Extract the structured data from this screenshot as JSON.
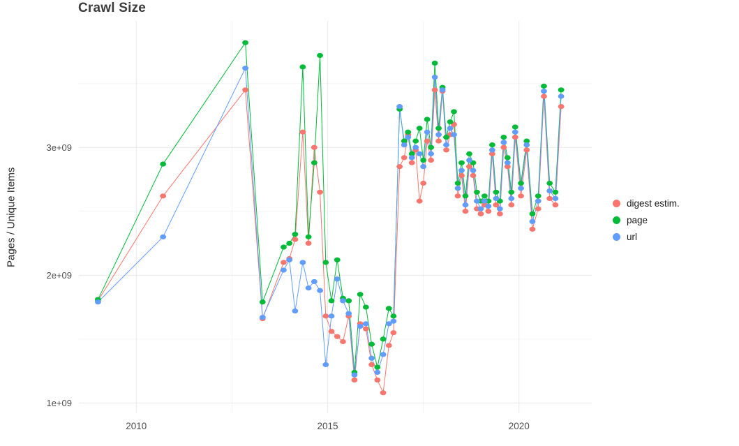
{
  "chart_data": {
    "type": "line",
    "title": "Crawl Size",
    "xlabel": "",
    "ylabel": "Pages / Unique Items",
    "legend_position": "right",
    "grid": true,
    "unit": "items (values in billions, i.e. ×1e+09)",
    "xlim": [
      2008.5,
      2021.9
    ],
    "ylim": [
      0.92,
      3.99
    ],
    "x_ticks": [
      2010,
      2015,
      2020
    ],
    "x_minor_ticks": [
      2012.5,
      2017.5
    ],
    "y_ticks": [
      1,
      2,
      3
    ],
    "y_minor_ticks": [
      1.5,
      2.5,
      3.5
    ],
    "y_tick_labels": [
      "1e+09",
      "2e+09",
      "3e+09"
    ],
    "x": [
      2009.0,
      2010.7,
      2012.85,
      2013.3,
      2013.85,
      2014.0,
      2014.15,
      2014.35,
      2014.5,
      2014.65,
      2014.8,
      2014.95,
      2015.1,
      2015.25,
      2015.4,
      2015.55,
      2015.7,
      2015.85,
      2016.0,
      2016.15,
      2016.3,
      2016.45,
      2016.6,
      2016.72,
      2016.88,
      2017.0,
      2017.1,
      2017.2,
      2017.3,
      2017.4,
      2017.5,
      2017.6,
      2017.7,
      2017.8,
      2017.9,
      2018.0,
      2018.1,
      2018.2,
      2018.3,
      2018.4,
      2018.5,
      2018.6,
      2018.7,
      2018.8,
      2018.9,
      2019.0,
      2019.1,
      2019.2,
      2019.3,
      2019.4,
      2019.5,
      2019.6,
      2019.7,
      2019.8,
      2019.9,
      2020.05,
      2020.2,
      2020.35,
      2020.5,
      2020.65,
      2020.8,
      2020.95,
      2021.1
    ],
    "series": [
      {
        "name": "digest estim.",
        "color": "#F8766D",
        "values": [
          1.8,
          2.62,
          3.45,
          1.66,
          2.1,
          2.13,
          2.28,
          3.12,
          2.25,
          3.0,
          2.65,
          1.68,
          1.56,
          1.52,
          1.48,
          1.68,
          1.18,
          1.62,
          1.58,
          1.3,
          1.18,
          1.08,
          1.45,
          1.55,
          2.85,
          2.92,
          3.1,
          2.88,
          2.98,
          2.58,
          2.72,
          3.05,
          2.9,
          3.45,
          3.05,
          3.44,
          2.98,
          3.1,
          3.18,
          2.62,
          2.78,
          2.5,
          2.85,
          2.78,
          2.52,
          2.48,
          2.55,
          2.5,
          2.95,
          2.55,
          2.48,
          3.0,
          2.85,
          2.55,
          3.08,
          2.62,
          2.98,
          2.36,
          2.52,
          3.4,
          2.6,
          2.55,
          3.32
        ]
      },
      {
        "name": "page",
        "color": "#00BA38",
        "values": [
          1.81,
          2.87,
          3.82,
          1.79,
          2.22,
          2.25,
          2.32,
          3.63,
          2.3,
          2.88,
          3.72,
          2.1,
          1.8,
          2.12,
          1.82,
          1.8,
          1.24,
          1.85,
          1.75,
          1.46,
          1.28,
          1.5,
          1.74,
          1.68,
          3.3,
          3.05,
          3.12,
          2.95,
          3.05,
          3.15,
          2.9,
          3.22,
          3.0,
          3.66,
          3.15,
          3.47,
          3.08,
          3.2,
          3.28,
          2.72,
          2.88,
          2.62,
          2.95,
          2.88,
          2.65,
          2.58,
          2.62,
          2.58,
          3.02,
          2.65,
          2.58,
          3.08,
          2.92,
          2.65,
          3.16,
          2.72,
          3.05,
          2.48,
          2.62,
          3.48,
          2.72,
          2.65,
          3.45
        ]
      },
      {
        "name": "url",
        "color": "#619CFF",
        "values": [
          1.79,
          2.3,
          3.62,
          1.67,
          2.04,
          2.12,
          1.72,
          2.1,
          1.9,
          1.95,
          1.88,
          1.3,
          1.68,
          1.97,
          1.8,
          1.7,
          1.22,
          1.6,
          1.62,
          1.35,
          1.24,
          1.38,
          1.62,
          1.64,
          3.32,
          3.02,
          3.08,
          2.92,
          3.0,
          2.95,
          2.85,
          3.12,
          2.95,
          3.55,
          3.1,
          3.45,
          3.02,
          3.15,
          3.1,
          2.68,
          2.82,
          2.55,
          2.9,
          2.82,
          2.58,
          2.52,
          2.58,
          2.54,
          2.98,
          2.6,
          2.52,
          3.04,
          2.88,
          2.6,
          3.12,
          2.68,
          3.02,
          2.42,
          2.58,
          3.44,
          2.66,
          2.6,
          3.4
        ]
      }
    ]
  },
  "legend": {
    "items": [
      {
        "label": "digest estim.",
        "color": "#F8766D"
      },
      {
        "label": "page",
        "color": "#00BA38"
      },
      {
        "label": "url",
        "color": "#619CFF"
      }
    ]
  },
  "theme": {
    "background": "#ffffff",
    "grid_major": "#e9e9e9",
    "grid_minor": "#f4f4f4",
    "tick_label_color": "#4d4d4d",
    "title_color": "#3c3c3c"
  }
}
